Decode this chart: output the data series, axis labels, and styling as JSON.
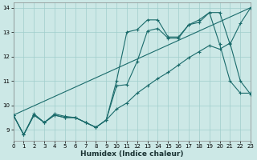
{
  "xlabel": "Humidex (Indice chaleur)",
  "background_color": "#cce8e6",
  "line_color": "#1a6b6b",
  "grid_color": "#a0cecc",
  "xlim": [
    0,
    23
  ],
  "ylim": [
    8.55,
    14.2
  ],
  "yticks": [
    9,
    10,
    11,
    12,
    13,
    14
  ],
  "xticks": [
    0,
    1,
    2,
    3,
    4,
    5,
    6,
    7,
    8,
    9,
    10,
    11,
    12,
    13,
    14,
    15,
    16,
    17,
    18,
    19,
    20,
    21,
    22,
    23
  ],
  "line1_x": [
    0,
    1,
    2,
    3,
    4,
    5,
    6,
    7,
    8,
    9,
    10,
    11,
    12,
    13,
    14,
    15,
    16,
    17,
    18,
    19,
    20,
    21,
    22,
    23
  ],
  "line1_y": [
    9.6,
    8.8,
    9.6,
    9.3,
    9.6,
    9.5,
    9.5,
    9.3,
    9.1,
    9.4,
    10.8,
    10.85,
    11.8,
    13.05,
    13.15,
    12.75,
    12.75,
    13.3,
    13.4,
    13.8,
    12.5,
    11.0,
    10.5,
    10.5
  ],
  "line2_x": [
    0,
    1,
    2,
    3,
    4,
    5,
    6,
    7,
    8,
    9,
    10,
    11,
    12,
    13,
    14,
    15,
    16,
    17,
    18,
    19,
    20,
    21,
    22,
    23
  ],
  "line2_y": [
    9.6,
    8.8,
    9.65,
    9.3,
    9.65,
    9.55,
    9.5,
    9.3,
    9.1,
    9.4,
    11.0,
    13.0,
    13.1,
    13.5,
    13.5,
    12.8,
    12.8,
    13.3,
    13.5,
    13.8,
    13.8,
    12.5,
    13.35,
    14.0
  ],
  "line3_x": [
    0,
    23
  ],
  "line3_y": [
    9.6,
    14.0
  ],
  "line4_x": [
    0,
    1,
    2,
    3,
    4,
    5,
    6,
    7,
    8,
    9,
    10,
    11,
    12,
    13,
    14,
    15,
    16,
    17,
    18,
    19,
    20,
    21,
    22,
    23
  ],
  "line4_y": [
    9.6,
    8.8,
    9.6,
    9.3,
    9.6,
    9.5,
    9.5,
    9.3,
    9.1,
    9.4,
    9.85,
    10.1,
    10.5,
    10.8,
    11.1,
    11.35,
    11.65,
    11.95,
    12.2,
    12.45,
    12.3,
    12.55,
    11.0,
    10.45
  ]
}
